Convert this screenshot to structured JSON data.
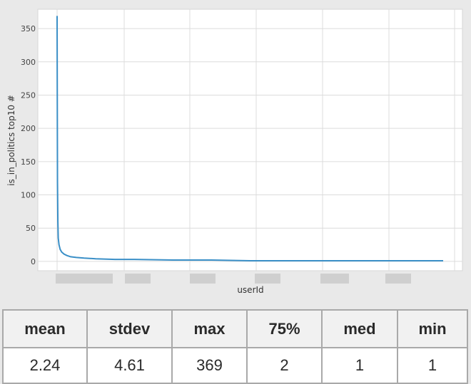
{
  "chart_data": {
    "type": "line",
    "ylabel": "is_in_politics top10 #",
    "xlabel": "userId",
    "ylim": [
      -14,
      379
    ],
    "ytick_values": [
      0,
      50,
      100,
      150,
      200,
      250,
      300,
      350
    ],
    "ytick_labels": [
      "0",
      "50",
      "100",
      "150",
      "200",
      "250",
      "300",
      "350"
    ],
    "xtick_labels_obscured": true,
    "grid": true,
    "line_color": "#3a8fc7",
    "series": [
      {
        "x": [
          0,
          0.001,
          0.002,
          0.003,
          0.005,
          0.008,
          0.012,
          0.018,
          0.025,
          0.035,
          0.05,
          0.07,
          0.1,
          0.15,
          0.2,
          0.3,
          0.4,
          0.5,
          0.6,
          0.8,
          1.0
        ],
        "values": [
          369,
          120,
          60,
          35,
          25,
          18,
          14,
          11,
          9,
          7,
          6,
          5,
          4,
          3,
          3,
          2,
          2,
          1,
          1,
          1,
          1
        ]
      }
    ]
  },
  "stats": {
    "headers": [
      "mean",
      "stdev",
      "max",
      "75%",
      "med",
      "min"
    ],
    "values": [
      "2.24",
      "4.61",
      "369",
      "2",
      "1",
      "1"
    ]
  }
}
